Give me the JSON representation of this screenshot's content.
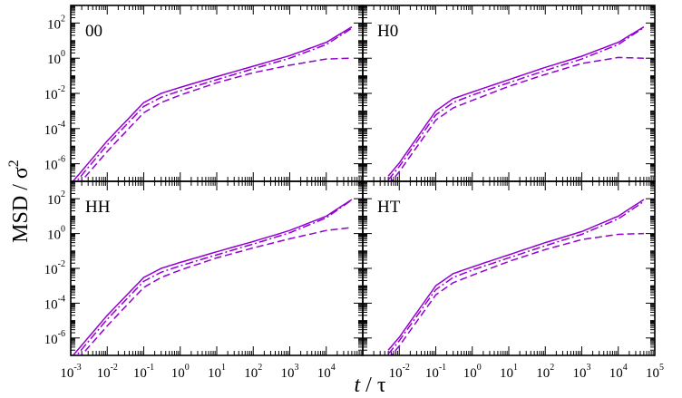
{
  "chart_data": {
    "type": "line",
    "xlabel": {
      "italic": "t",
      "rest": " / τ"
    },
    "ylabel": {
      "base": "MSD / σ",
      "sup": "2"
    },
    "x_scale": "log",
    "y_scale": "log",
    "xlim": [
      0.001,
      100000
    ],
    "ylim": [
      1e-07,
      1000
    ],
    "x_tick_exponents": [
      -3,
      -2,
      -1,
      0,
      1,
      2,
      3,
      4,
      5
    ],
    "y_tick_exponents": [
      -6,
      -4,
      -2,
      0,
      2
    ],
    "line_color": "#9400d3",
    "panels": [
      {
        "label": "00",
        "series": [
          {
            "style": "solid",
            "x": [
              0.001,
              0.01,
              0.1,
              0.3,
              1,
              10,
              100,
              1000,
              10000,
              50000
            ],
            "y": [
              7e-08,
              2e-05,
              0.003,
              0.01,
              0.022,
              0.09,
              0.35,
              1.4,
              8,
              60
            ]
          },
          {
            "style": "dashdot",
            "x": [
              0.001,
              0.01,
              0.1,
              0.3,
              1,
              10,
              100,
              1000,
              10000,
              50000
            ],
            "y": [
              4e-08,
              1.2e-05,
              0.0018,
              0.006,
              0.014,
              0.06,
              0.25,
              1.0,
              6,
              50
            ]
          },
          {
            "style": "dashed",
            "x": [
              0.001,
              0.01,
              0.1,
              0.3,
              1,
              10,
              100,
              1000,
              10000,
              50000
            ],
            "y": [
              2e-08,
              5e-06,
              0.0008,
              0.003,
              0.008,
              0.04,
              0.15,
              0.4,
              0.9,
              1.0
            ]
          }
        ]
      },
      {
        "label": "H0",
        "series": [
          {
            "style": "solid",
            "x": [
              0.005,
              0.01,
              0.1,
              0.3,
              1,
              10,
              100,
              1000,
              10000,
              50000
            ],
            "y": [
              2e-07,
              1.1e-06,
              0.001,
              0.005,
              0.012,
              0.06,
              0.3,
              1.3,
              8,
              60
            ]
          },
          {
            "style": "dashdot",
            "x": [
              0.005,
              0.01,
              0.1,
              0.3,
              1,
              10,
              100,
              1000,
              10000,
              50000
            ],
            "y": [
              1.2e-07,
              7e-07,
              0.0006,
              0.003,
              0.008,
              0.04,
              0.2,
              0.9,
              6,
              55
            ]
          },
          {
            "style": "dashed",
            "x": [
              0.005,
              0.01,
              0.1,
              0.3,
              1,
              10,
              100,
              1000,
              10000,
              50000
            ],
            "y": [
              6e-08,
              3.5e-07,
              0.0003,
              0.0015,
              0.004,
              0.025,
              0.12,
              0.5,
              1.1,
              1.0
            ]
          }
        ]
      },
      {
        "label": "HH",
        "series": [
          {
            "style": "solid",
            "x": [
              0.001,
              0.01,
              0.1,
              0.3,
              1,
              10,
              100,
              1000,
              10000,
              50000
            ],
            "y": [
              7e-08,
              2e-05,
              0.003,
              0.01,
              0.022,
              0.09,
              0.35,
              1.5,
              10,
              90
            ]
          },
          {
            "style": "dashdot",
            "x": [
              0.001,
              0.01,
              0.1,
              0.3,
              1,
              10,
              100,
              1000,
              10000,
              50000
            ],
            "y": [
              4e-08,
              1.2e-05,
              0.0018,
              0.006,
              0.014,
              0.06,
              0.25,
              1.1,
              8,
              85
            ]
          },
          {
            "style": "dashed",
            "x": [
              0.001,
              0.01,
              0.1,
              0.3,
              1,
              10,
              100,
              1000,
              10000,
              50000
            ],
            "y": [
              2e-08,
              5e-06,
              0.0008,
              0.003,
              0.008,
              0.04,
              0.15,
              0.5,
              1.5,
              2.2
            ]
          }
        ]
      },
      {
        "label": "HT",
        "series": [
          {
            "style": "solid",
            "x": [
              0.005,
              0.01,
              0.1,
              0.3,
              1,
              10,
              100,
              1000,
              10000,
              50000
            ],
            "y": [
              2e-07,
              1.1e-06,
              0.001,
              0.005,
              0.012,
              0.06,
              0.3,
              1.3,
              10,
              90
            ]
          },
          {
            "style": "dashdot",
            "x": [
              0.005,
              0.01,
              0.1,
              0.3,
              1,
              10,
              100,
              1000,
              10000,
              50000
            ],
            "y": [
              1.2e-07,
              7e-07,
              0.0006,
              0.003,
              0.008,
              0.04,
              0.2,
              0.9,
              7,
              70
            ]
          },
          {
            "style": "dashed",
            "x": [
              0.005,
              0.01,
              0.1,
              0.3,
              1,
              10,
              100,
              1000,
              10000,
              50000
            ],
            "y": [
              6e-08,
              3.5e-07,
              0.0003,
              0.0015,
              0.004,
              0.025,
              0.12,
              0.45,
              0.9,
              1.0
            ]
          }
        ]
      }
    ]
  }
}
